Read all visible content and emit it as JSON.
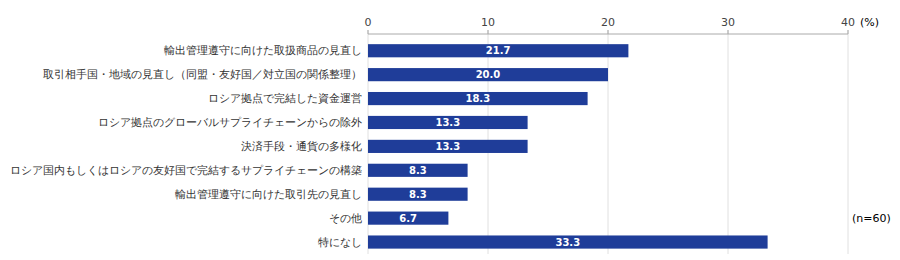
{
  "chart_data": {
    "type": "bar",
    "orientation": "horizontal",
    "categories": [
      "輸出管理遵守に向けた取扱商品の見直し",
      "取引相手国・地域の見直し（同盟・友好国／対立国の関係整理）",
      "ロシア拠点で完結した資金運営",
      "ロシア拠点のグローバルサプライチェーンからの除外",
      "決済手段・通貨の多様化",
      "ロシア国内もしくはロシアの友好国で完結するサプライチェーンの構築",
      "輸出管理遵守に向けた取引先の見直し",
      "その他",
      "特になし"
    ],
    "values": [
      21.7,
      20.0,
      18.3,
      13.3,
      13.3,
      8.3,
      8.3,
      6.7,
      33.3
    ],
    "value_labels": [
      "21.7",
      "20.0",
      "18.3",
      "13.3",
      "13.3",
      "8.3",
      "8.3",
      "6.7",
      "33.3"
    ],
    "data_labels": true,
    "color": "#1f3d99",
    "xlim": [
      0,
      40
    ],
    "xticks": [
      0,
      10,
      20,
      30,
      40
    ],
    "xlabel": "(%)",
    "annotations": [
      "(n=60)"
    ],
    "grid": true
  }
}
